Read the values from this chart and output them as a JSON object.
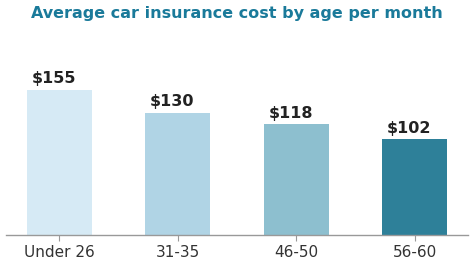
{
  "title": "Average car insurance cost by age per month",
  "categories": [
    "Under 26",
    "31-35",
    "46-50",
    "56-60"
  ],
  "values": [
    155,
    130,
    118,
    102
  ],
  "bar_colors": [
    "#d6eaf5",
    "#b0d4e5",
    "#8dbfcf",
    "#2e8099"
  ],
  "value_labels": [
    "$155",
    "$130",
    "$118",
    "$102"
  ],
  "ylim": [
    0,
    220
  ],
  "title_color": "#1a7a9a",
  "label_color": "#222222",
  "background_color": "#ffffff",
  "title_fontsize": 11.5,
  "label_fontsize": 11.5,
  "tick_fontsize": 11,
  "bar_width": 0.55
}
